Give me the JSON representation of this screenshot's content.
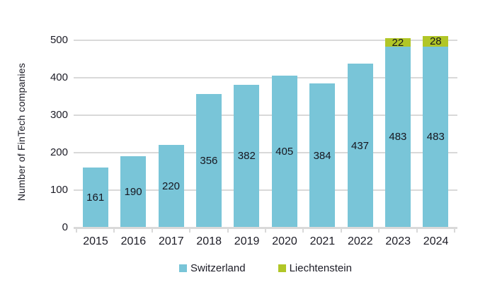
{
  "chart_data": {
    "type": "bar",
    "stacked": true,
    "title": "",
    "xlabel": "",
    "ylabel": "Number of FinTech companies",
    "categories": [
      "2015",
      "2016",
      "2017",
      "2018",
      "2019",
      "2020",
      "2021",
      "2022",
      "2023",
      "2024"
    ],
    "series": [
      {
        "name": "Switzerland",
        "color": "#79c5d8",
        "values": [
          161,
          190,
          220,
          356,
          382,
          405,
          384,
          437,
          483,
          483
        ]
      },
      {
        "name": "Liechtenstein",
        "color": "#b1c627",
        "values": [
          0,
          0,
          0,
          0,
          0,
          0,
          0,
          0,
          22,
          28
        ]
      }
    ],
    "ylim": [
      0,
      500
    ],
    "yticks": [
      0,
      100,
      200,
      300,
      400,
      500
    ],
    "grid": true,
    "gridline_color": "#d9d9d9",
    "axis_color": "#d9d9d9",
    "label_color": "#1c1c26",
    "legend_position": "bottom",
    "value_labels": "inside-segment-center"
  }
}
